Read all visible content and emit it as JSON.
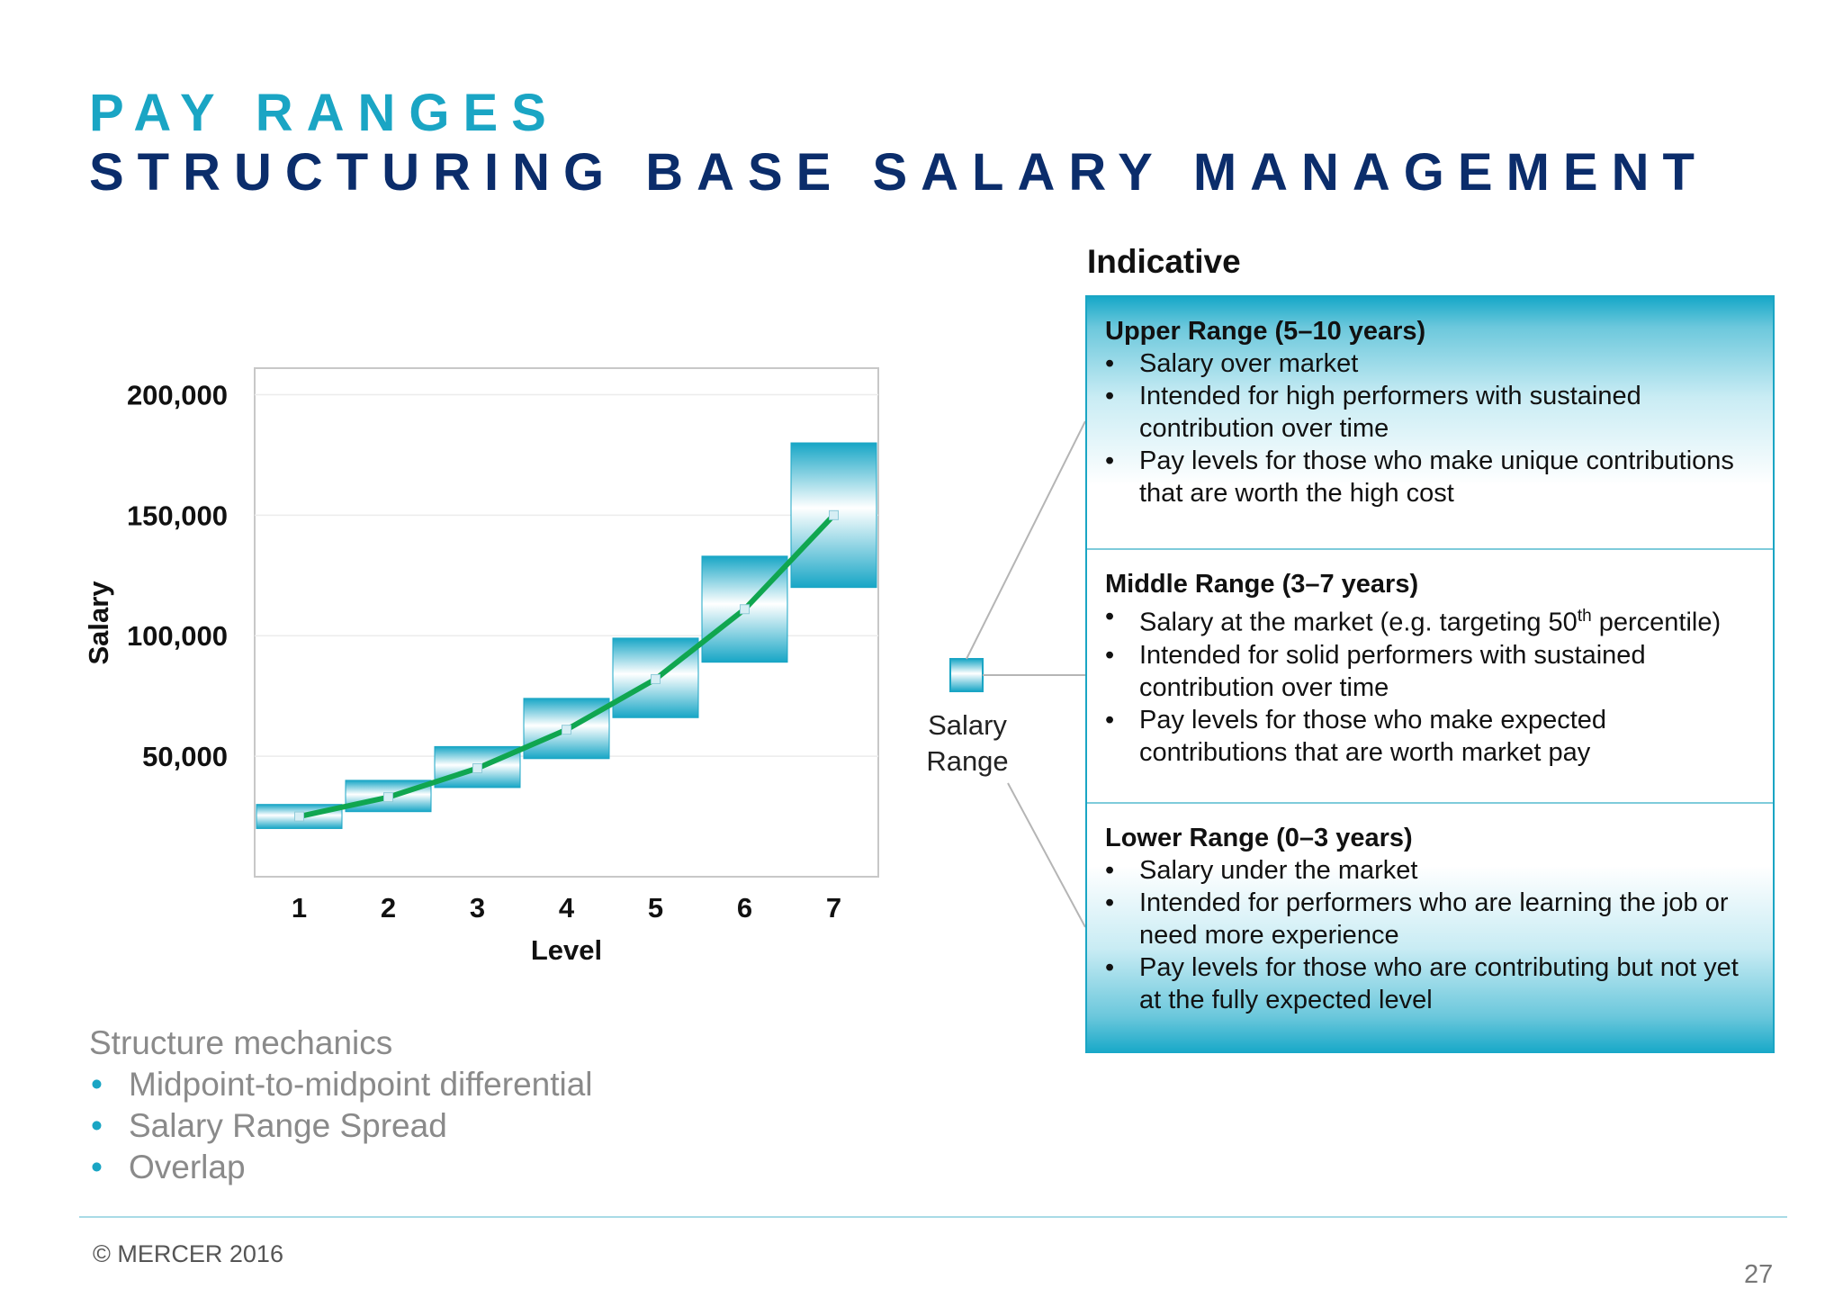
{
  "header": {
    "title_line1": "PAY RANGES",
    "title_line2": "STRUCTURING BASE SALARY MANAGEMENT"
  },
  "colors": {
    "title_accent": "#1aa5c4",
    "title_dark": "#0b2d6b",
    "midpoint_line": "#10a650",
    "range_fill": "#1aa5c4"
  },
  "chart_data": {
    "type": "bar",
    "subtype": "floating-range-with-midpoint-line",
    "xlabel": "Level",
    "ylabel": "Salary",
    "categories": [
      "1",
      "2",
      "3",
      "4",
      "5",
      "6",
      "7"
    ],
    "y_ticks": [
      50000,
      100000,
      150000,
      200000
    ],
    "y_tick_labels": [
      "50,000",
      "100,000",
      "150,000",
      "200,000"
    ],
    "ylim": [
      0,
      200000
    ],
    "grid": true,
    "series": [
      {
        "role": "range_min",
        "values": [
          20000,
          27000,
          37000,
          49000,
          66000,
          89000,
          120000
        ]
      },
      {
        "role": "range_max",
        "values": [
          30000,
          40000,
          54000,
          74000,
          99000,
          133000,
          180000
        ]
      },
      {
        "role": "midpoint",
        "values": [
          25000,
          33000,
          45000,
          61000,
          82000,
          111000,
          150000
        ]
      }
    ]
  },
  "legend": {
    "swatch_icon": "salary-range-swatch",
    "label_line1": "Salary",
    "label_line2": "Range"
  },
  "panel": {
    "heading": "Indicative",
    "sections": [
      {
        "title": "Upper Range (5–10 years)",
        "bullets": [
          "Salary over market",
          "Intended for high performers with sustained contribution over time",
          "Pay levels for those who make unique contributions that are worth the high cost"
        ]
      },
      {
        "title": "Middle Range (3–7 years)",
        "bullets": [
          "Salary at the market (e.g. targeting 50th percentile)",
          "Intended for solid performers with sustained contribution over time",
          "Pay levels for those who make expected contributions that are worth market pay"
        ]
      },
      {
        "title": "Lower Range (0–3 years)",
        "bullets": [
          "Salary under the market",
          "Intended for performers who are learning the job or need more experience",
          "Pay levels for those who are contributing but not yet at the fully expected level"
        ]
      }
    ]
  },
  "mechanics": {
    "heading": "Structure mechanics",
    "items": [
      "Midpoint-to-midpoint differential",
      "Salary Range Spread",
      "Overlap"
    ]
  },
  "footer": {
    "copyright": "© MERCER 2016",
    "page_number": "27"
  }
}
